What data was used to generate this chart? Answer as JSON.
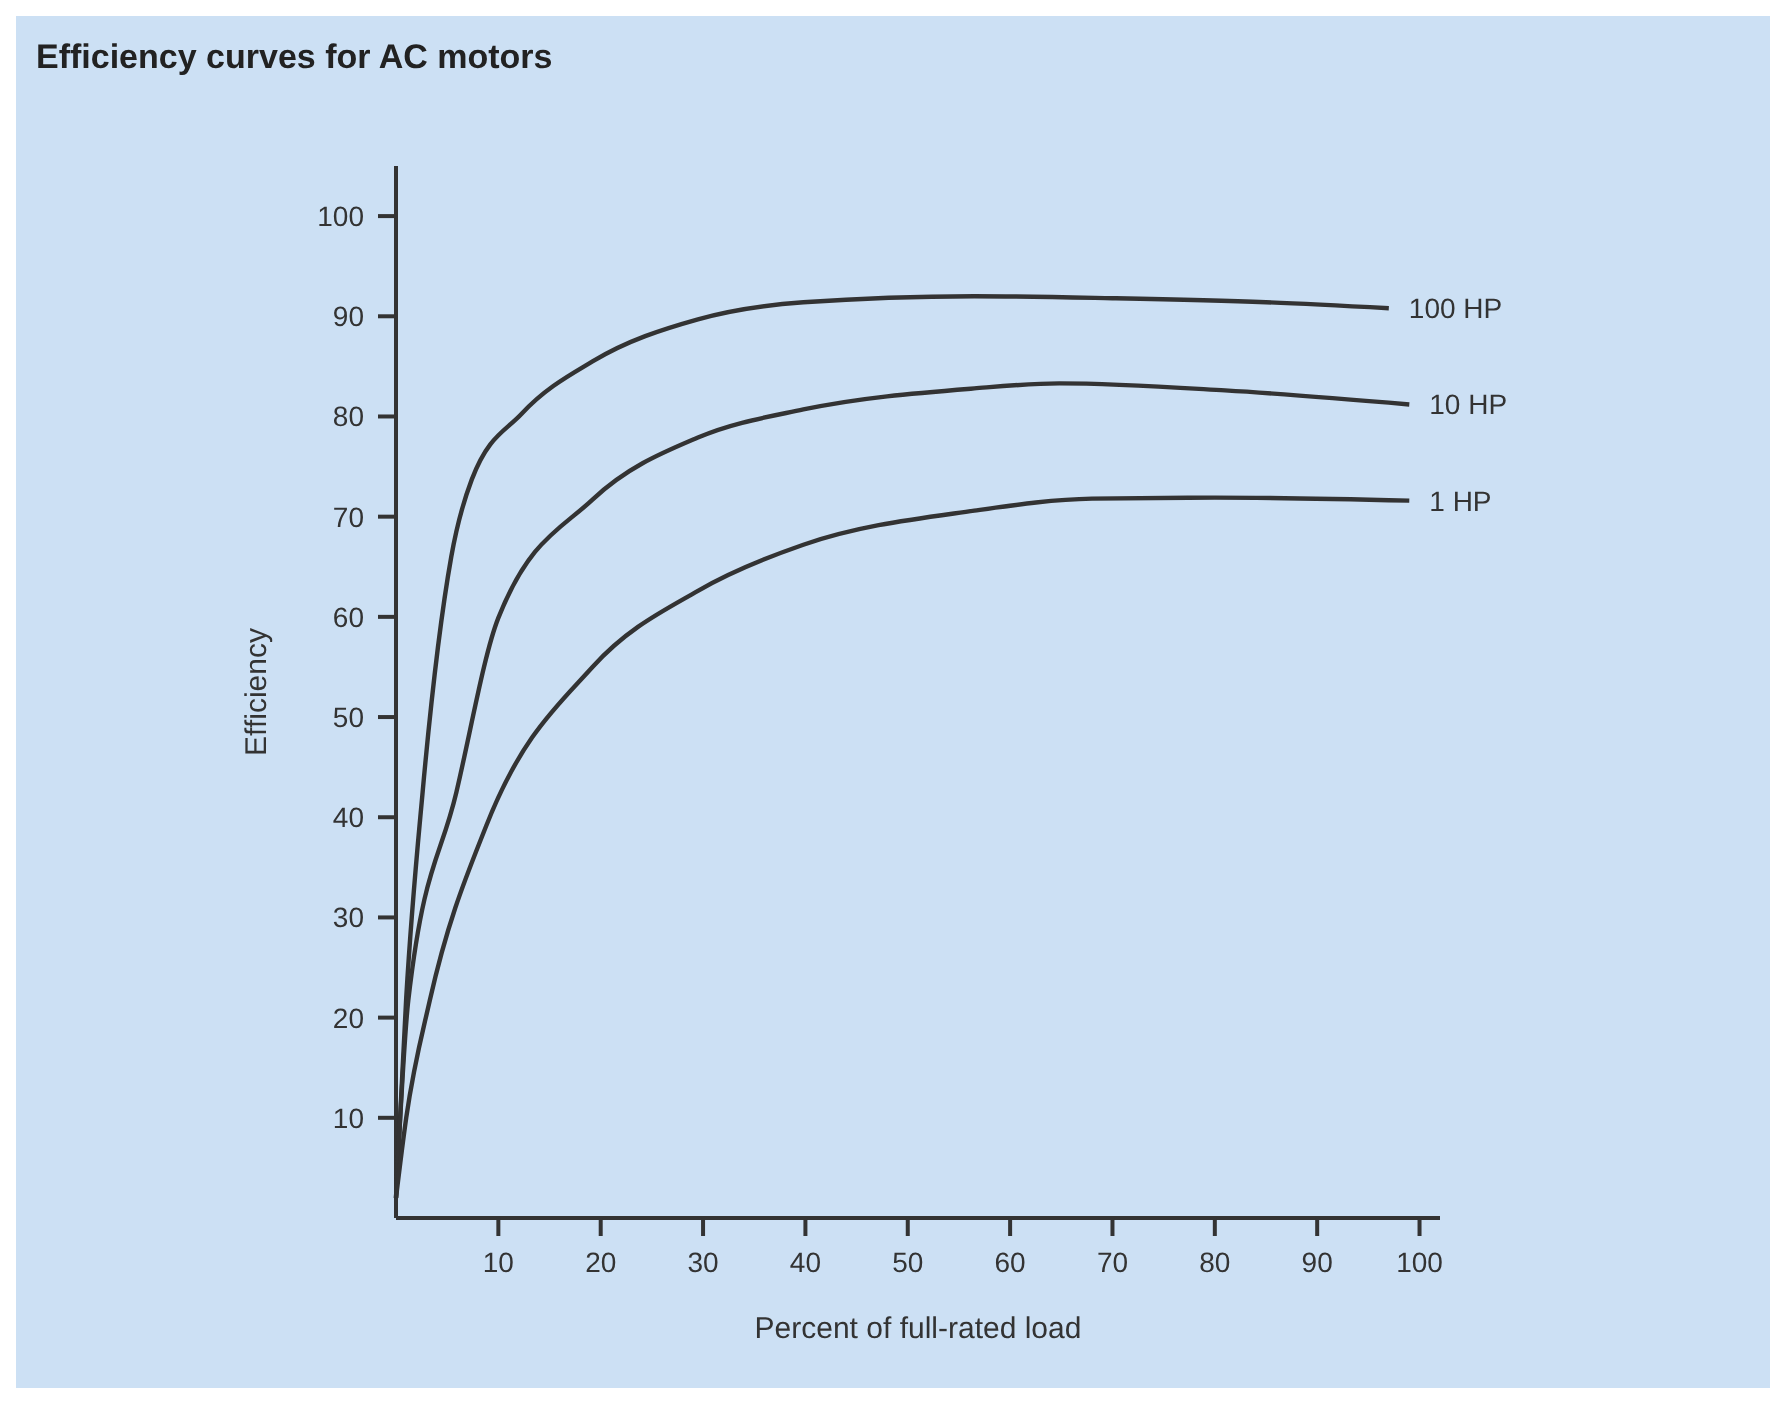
{
  "chart_data": {
    "type": "line",
    "title": "Efficiency curves for AC motors",
    "xlabel": "Percent of full-rated load",
    "ylabel": "Efficiency",
    "xlim": [
      0,
      102
    ],
    "ylim": [
      0,
      105
    ],
    "xticks": [
      10,
      20,
      30,
      40,
      50,
      60,
      70,
      80,
      90,
      100
    ],
    "yticks": [
      10,
      20,
      30,
      40,
      50,
      60,
      70,
      80,
      90,
      100
    ],
    "grid": false,
    "marker": "none",
    "line_style": "solid",
    "series": [
      {
        "name": "100 HP",
        "color": "#333333",
        "x": [
          0,
          1,
          2.6,
          5.4,
          7.4,
          12.3,
          19.2,
          29.5,
          39.8,
          56.5,
          70,
          85,
          97
        ],
        "values": [
          2,
          22,
          42.5,
          66,
          73.7,
          80.3,
          85.5,
          89.7,
          91.4,
          92,
          91.8,
          91.4,
          90.8
        ]
      },
      {
        "name": "10 HP",
        "color": "#333333",
        "x": [
          0,
          1.2,
          5.9,
          10,
          19.2,
          29.5,
          39.8,
          56.5,
          64.8,
          81,
          99
        ],
        "values": [
          2,
          21.7,
          42.5,
          59.9,
          71.7,
          77.9,
          80.7,
          82.8,
          83.3,
          82.6,
          81.2
        ]
      },
      {
        "name": "1 HP",
        "color": "#333333",
        "x": [
          0,
          1,
          3.3,
          8.8,
          19.2,
          29.5,
          39.8,
          56.5,
          68,
          80,
          99
        ],
        "values": [
          2,
          10,
          21.7,
          39.1,
          55,
          62.6,
          67.2,
          70.6,
          71.8,
          71.9,
          71.6
        ]
      }
    ]
  }
}
